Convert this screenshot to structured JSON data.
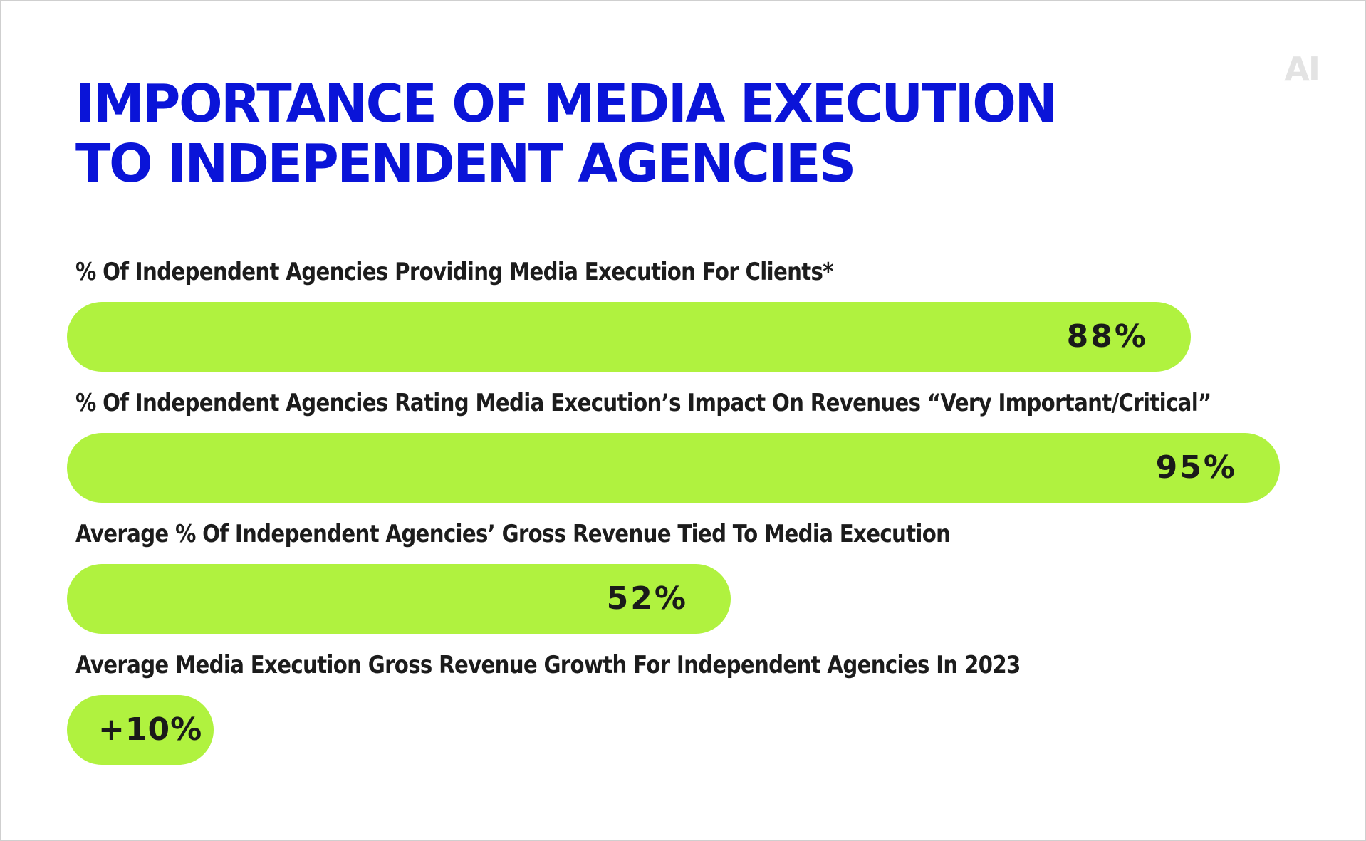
{
  "logo": "AI",
  "title": "IMPORTANCE OF MEDIA EXECUTION TO INDEPENDENT AGENCIES",
  "colors": {
    "title": "#0a14d8",
    "bar": "#b0f23f",
    "label": "#1c1c1c"
  },
  "chart_data": {
    "type": "bar",
    "orientation": "horizontal",
    "title": "IMPORTANCE OF MEDIA EXECUTION TO INDEPENDENT AGENCIES",
    "categories": [
      "% Of Independent Agencies Providing Media Execution For Clients*",
      "% Of Independent Agencies Rating Media Execution’s Impact On Revenues “Very Important/Critical”",
      "Average % Of Independent Agencies’ Gross Revenue Tied To Media Execution",
      "Average Media Execution Gross Revenue Growth For Independent Agencies In 2023"
    ],
    "values": [
      88,
      95,
      52,
      10
    ],
    "value_labels": [
      "88%",
      "95%",
      "52%",
      "+10%"
    ],
    "xlim": [
      0,
      100
    ],
    "grid": false,
    "legend": "none"
  }
}
